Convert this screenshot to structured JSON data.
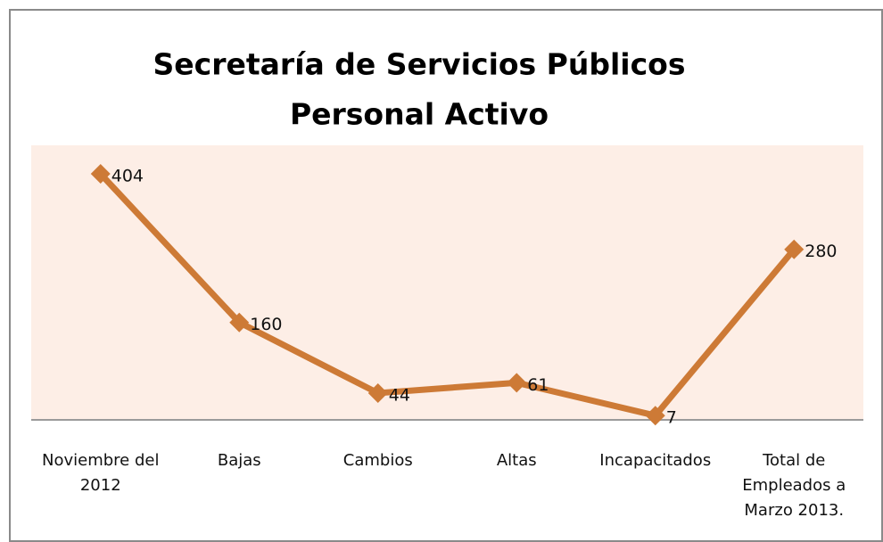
{
  "chart_data": {
    "type": "line",
    "title": [
      "Secretaría de Servicios Públicos",
      "Personal Activo"
    ],
    "categories": [
      "Noviembre del 2012",
      "Bajas",
      "Cambios",
      "Altas",
      "Incapacitados",
      "Total de Empleados a Marzo 2013."
    ],
    "series": [
      {
        "name": "Personal Activo",
        "color": "#cd7a36",
        "values": [
          404,
          160,
          44,
          61,
          7,
          280
        ]
      }
    ]
  }
}
